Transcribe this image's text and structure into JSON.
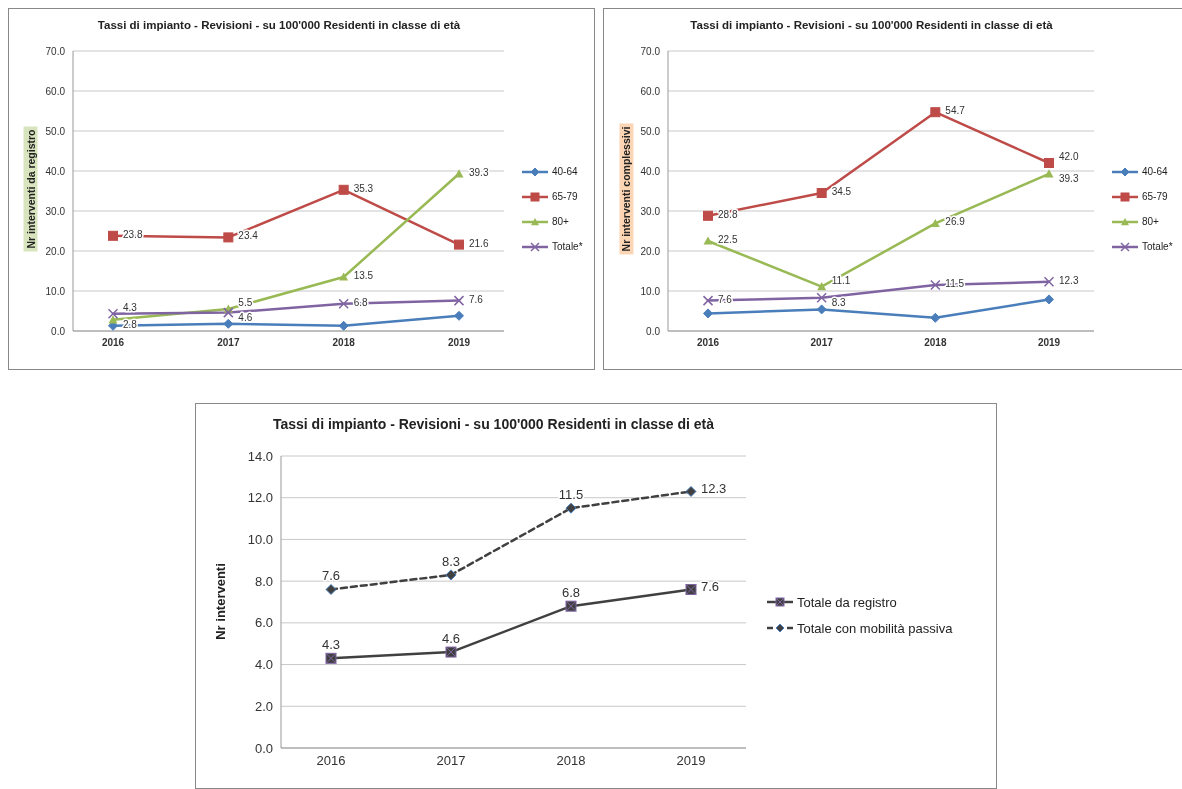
{
  "chart_data": [
    {
      "type": "line",
      "title": "Tassi di impianto - Revisioni - su 100'000 Residenti in classe di età",
      "ylabel": "Nr interventi da registro",
      "categories": [
        "2016",
        "2017",
        "2018",
        "2019"
      ],
      "ylim": [
        0,
        70
      ],
      "yticks": [
        {
          "value": 0,
          "label": "0.0"
        },
        {
          "value": 10,
          "label": "10.0"
        },
        {
          "value": 20,
          "label": "20.0"
        },
        {
          "value": 30,
          "label": "30.0"
        },
        {
          "value": 40,
          "label": "40.0"
        },
        {
          "value": 50,
          "label": "50.0"
        },
        {
          "value": 60,
          "label": "60.0"
        },
        {
          "value": 70,
          "label": "70.0"
        }
      ],
      "grid": "y",
      "legend": "right",
      "series": [
        {
          "name": "40-64",
          "color": "#4a7ebb",
          "marker": "diamond",
          "values": [
            1.3,
            1.8,
            1.3,
            3.8
          ]
        },
        {
          "name": "65-79",
          "color": "#be4b48",
          "marker": "square",
          "values": [
            23.8,
            23.4,
            35.3,
            21.6
          ],
          "value_labels": [
            "23.8",
            "23.4",
            "35.3",
            "21.6"
          ]
        },
        {
          "name": "80+",
          "color": "#98b954",
          "marker": "triangle",
          "values": [
            2.8,
            5.5,
            13.5,
            39.3
          ],
          "value_labels": [
            "2.8",
            "5.5",
            "13.5",
            "39.3"
          ]
        },
        {
          "name": "Totale*",
          "color": "#8064a2",
          "marker": "cross",
          "values": [
            4.3,
            4.6,
            6.8,
            7.6
          ],
          "value_labels": [
            "4.3",
            "4.6",
            "6.8",
            "7.6"
          ]
        }
      ]
    },
    {
      "type": "line",
      "title": "Tassi di impianto - Revisioni - su 100'000 Residenti in classe di età",
      "ylabel": "Nr interventi complessivi",
      "categories": [
        "2016",
        "2017",
        "2018",
        "2019"
      ],
      "ylim": [
        0,
        70
      ],
      "yticks": [
        {
          "value": 0,
          "label": "0.0"
        },
        {
          "value": 10,
          "label": "10.0"
        },
        {
          "value": 20,
          "label": "20.0"
        },
        {
          "value": 30,
          "label": "30.0"
        },
        {
          "value": 40,
          "label": "40.0"
        },
        {
          "value": 50,
          "label": "50.0"
        },
        {
          "value": 60,
          "label": "60.0"
        },
        {
          "value": 70,
          "label": "70.0"
        }
      ],
      "grid": "y",
      "legend": "right",
      "series": [
        {
          "name": "40-64",
          "color": "#4a7ebb",
          "marker": "diamond",
          "values": [
            4.4,
            5.4,
            3.3,
            7.9
          ]
        },
        {
          "name": "65-79",
          "color": "#be4b48",
          "marker": "square",
          "values": [
            28.8,
            34.5,
            54.7,
            42.0
          ],
          "value_labels": [
            "28.8",
            "34.5",
            "54.7",
            "42.0"
          ]
        },
        {
          "name": "80+",
          "color": "#98b954",
          "marker": "triangle",
          "values": [
            22.5,
            11.1,
            26.9,
            39.3
          ],
          "value_labels": [
            "22.5",
            "11.1",
            "26.9",
            "39.3"
          ]
        },
        {
          "name": "Totale*",
          "color": "#8064a2",
          "marker": "cross",
          "values": [
            7.6,
            8.3,
            11.5,
            12.3
          ],
          "value_labels": [
            "7.6",
            "8.3",
            "11.5",
            "12.3"
          ]
        }
      ]
    },
    {
      "type": "line",
      "title": "Tassi di impianto - Revisioni - su 100'000 Residenti in classe di età",
      "ylabel": "Nr interventi",
      "categories": [
        "2016",
        "2017",
        "2018",
        "2019"
      ],
      "ylim": [
        0,
        14
      ],
      "yticks": [
        {
          "value": 0,
          "label": "0.0"
        },
        {
          "value": 2,
          "label": "2.0"
        },
        {
          "value": 4,
          "label": "4.0"
        },
        {
          "value": 6,
          "label": "6.0"
        },
        {
          "value": 8,
          "label": "8.0"
        },
        {
          "value": 10,
          "label": "10.0"
        },
        {
          "value": 12,
          "label": "12.0"
        },
        {
          "value": 14,
          "label": "14.0"
        }
      ],
      "grid": "y",
      "legend": "right",
      "data_labels": true,
      "series": [
        {
          "name": "Totale da registro",
          "color": "#404040",
          "marker": "square",
          "line_style": "solid",
          "values": [
            4.3,
            4.6,
            6.8,
            7.6
          ]
        },
        {
          "name": "Totale con mobilità passiva",
          "color": "#404040",
          "marker": "diamond",
          "line_style": "dashed",
          "values": [
            7.6,
            8.3,
            11.5,
            12.3
          ]
        }
      ]
    }
  ]
}
